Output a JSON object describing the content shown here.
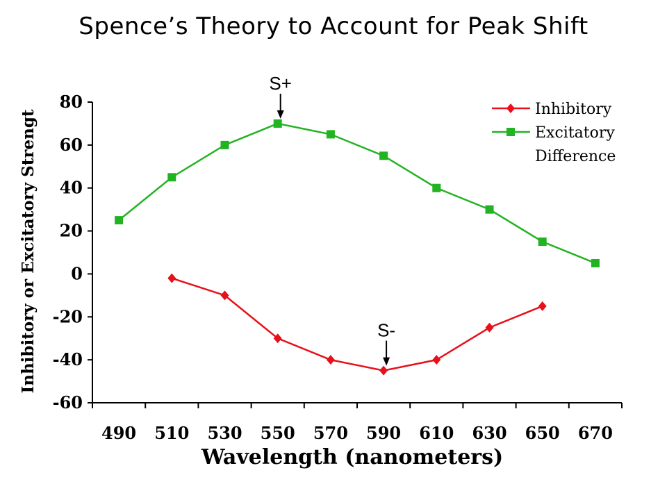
{
  "slide": {
    "title": "Spence’s Theory to Account for  Peak Shift"
  },
  "chart_data": {
    "type": "line",
    "xlabel": "Wavelength (nanometers)",
    "ylabel": "Inhibitory or Excitatory Strengt",
    "categories": [
      "490",
      "510",
      "530",
      "550",
      "570",
      "590",
      "610",
      "630",
      "650",
      "670"
    ],
    "ylim": [
      -60,
      80
    ],
    "yticks": [
      80,
      60,
      40,
      20,
      0,
      -20,
      -40,
      -60
    ],
    "grid": false,
    "legend_position": "top-right",
    "legend_extra_label": "Difference",
    "series": [
      {
        "name": "Inhibitory",
        "color": "#e8101a",
        "marker": "diamond",
        "x": [
          510,
          530,
          550,
          570,
          590,
          610,
          630,
          650
        ],
        "values": [
          -2,
          -10,
          -30,
          -40,
          -45,
          -40,
          -25,
          -15
        ]
      },
      {
        "name": "Excitatory",
        "color": "#22b322",
        "marker": "square",
        "x": [
          490,
          510,
          530,
          550,
          570,
          590,
          610,
          630,
          650,
          670
        ],
        "values": [
          25,
          45,
          60,
          70,
          65,
          55,
          40,
          30,
          15,
          5
        ]
      }
    ],
    "annotations": [
      {
        "text": "S+",
        "x": 550,
        "y": 70
      },
      {
        "text": "S-",
        "x": 590,
        "y": -45
      }
    ]
  }
}
